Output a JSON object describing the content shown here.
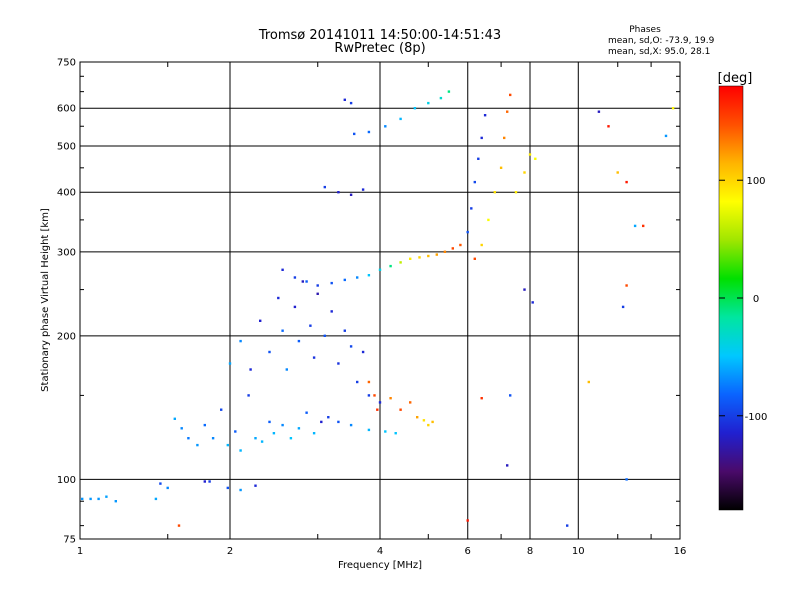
{
  "chart_data": {
    "type": "scatter",
    "title": "Tromsø 20141011 14:50:00-14:51:43",
    "subtitle": "RwPretec (8p)",
    "xlabel": "Frequency [MHz]",
    "ylabel": "Stationary phase Virtual Height [km]",
    "x_scale": "log",
    "y_scale": "log",
    "xlim": [
      1,
      16
    ],
    "ylim": [
      75,
      750
    ],
    "x_ticks": [
      1,
      2,
      4,
      6,
      8,
      10,
      16
    ],
    "y_ticks": [
      75,
      100,
      200,
      300,
      400,
      500,
      600,
      750
    ],
    "grid": true,
    "stats": {
      "heading": "Phases",
      "line1": "mean, sd,O:  -73.9, 19.9",
      "line2": "mean, sd,X:  95.0, 28.1"
    },
    "colorbar": {
      "label": "[deg]",
      "range": [
        -180,
        180
      ],
      "ticks": [
        100,
        0,
        -100
      ],
      "stops": [
        "#000000",
        "#4a0a6a",
        "#2020d0",
        "#0a64ff",
        "#00c8ff",
        "#00e6a0",
        "#00e000",
        "#a0e600",
        "#ffff00",
        "#ffb400",
        "#ff5000",
        "#ff0000"
      ]
    },
    "series": [
      {
        "points": [
          [
            1.01,
            91,
            -65
          ],
          [
            1.05,
            91,
            -65
          ],
          [
            1.09,
            91,
            -65
          ],
          [
            1.13,
            92,
            -62
          ],
          [
            1.18,
            90,
            -65
          ],
          [
            1.42,
            91,
            -60
          ],
          [
            1.45,
            98,
            -95
          ],
          [
            1.5,
            96,
            -70
          ],
          [
            1.58,
            80,
            150
          ],
          [
            1.78,
            99,
            -115
          ],
          [
            1.82,
            99,
            -100
          ],
          [
            1.98,
            96,
            -90
          ],
          [
            2.1,
            95,
            -65
          ],
          [
            2.25,
            97,
            -110
          ]
        ]
      },
      {
        "points": [
          [
            1.55,
            134,
            -60
          ],
          [
            1.6,
            128,
            -70
          ],
          [
            1.65,
            122,
            -75
          ],
          [
            1.72,
            118,
            -65
          ],
          [
            1.78,
            130,
            -80
          ],
          [
            1.85,
            122,
            -70
          ],
          [
            1.92,
            140,
            -95
          ],
          [
            1.98,
            118,
            -55
          ],
          [
            2.05,
            126,
            -85
          ],
          [
            2.1,
            115,
            -55
          ],
          [
            2.18,
            150,
            -100
          ],
          [
            2.25,
            122,
            -60
          ],
          [
            2.32,
            120,
            -55
          ],
          [
            2.4,
            132,
            -85
          ],
          [
            2.45,
            125,
            -55
          ],
          [
            2.55,
            130,
            -70
          ],
          [
            2.65,
            122,
            -50
          ],
          [
            2.75,
            128,
            -60
          ],
          [
            2.85,
            138,
            -85
          ],
          [
            2.95,
            125,
            -55
          ],
          [
            3.05,
            132,
            -115
          ],
          [
            3.15,
            135,
            -100
          ],
          [
            3.3,
            132,
            -90
          ],
          [
            3.5,
            130,
            -70
          ],
          [
            3.8,
            127,
            -55
          ],
          [
            4.1,
            126,
            -50
          ],
          [
            4.3,
            125,
            -50
          ]
        ]
      },
      {
        "points": [
          [
            2.0,
            175,
            -60
          ],
          [
            2.1,
            195,
            -70
          ],
          [
            2.2,
            170,
            -110
          ],
          [
            2.3,
            215,
            -115
          ],
          [
            2.4,
            185,
            -90
          ],
          [
            2.5,
            240,
            -110
          ],
          [
            2.55,
            205,
            -80
          ],
          [
            2.6,
            170,
            -70
          ],
          [
            2.7,
            230,
            -115
          ],
          [
            2.75,
            195,
            -85
          ],
          [
            2.8,
            260,
            -120
          ],
          [
            2.9,
            210,
            -100
          ],
          [
            2.95,
            180,
            -105
          ],
          [
            3.0,
            245,
            -125
          ],
          [
            3.1,
            200,
            -90
          ],
          [
            3.2,
            225,
            -110
          ],
          [
            3.3,
            175,
            -105
          ],
          [
            3.4,
            205,
            -100
          ],
          [
            3.5,
            190,
            -95
          ],
          [
            3.6,
            160,
            -100
          ],
          [
            3.7,
            185,
            -110
          ],
          [
            3.8,
            150,
            -100
          ],
          [
            4.0,
            145,
            -110
          ]
        ]
      },
      {
        "points": [
          [
            3.8,
            160,
            140
          ],
          [
            3.9,
            150,
            150
          ],
          [
            3.95,
            140,
            160
          ],
          [
            4.2,
            148,
            130
          ],
          [
            4.4,
            140,
            150
          ],
          [
            4.6,
            145,
            140
          ],
          [
            4.75,
            135,
            120
          ],
          [
            4.9,
            133,
            95
          ],
          [
            5.0,
            130,
            100
          ],
          [
            5.1,
            132,
            110
          ]
        ]
      },
      {
        "points": [
          [
            2.55,
            275,
            -110
          ],
          [
            2.7,
            265,
            -100
          ],
          [
            2.85,
            260,
            -85
          ],
          [
            3.0,
            255,
            -100
          ],
          [
            3.2,
            258,
            -90
          ],
          [
            3.4,
            262,
            -80
          ],
          [
            3.6,
            265,
            -70
          ],
          [
            3.8,
            268,
            -50
          ],
          [
            4.0,
            275,
            -40
          ],
          [
            4.2,
            280,
            -10
          ],
          [
            4.4,
            285,
            60
          ],
          [
            4.6,
            290,
            90
          ],
          [
            4.8,
            292,
            100
          ],
          [
            5.0,
            294,
            110
          ],
          [
            5.2,
            296,
            120
          ],
          [
            5.4,
            300,
            130
          ],
          [
            5.6,
            305,
            150
          ],
          [
            5.8,
            310,
            145
          ],
          [
            6.0,
            330,
            -90
          ],
          [
            6.1,
            370,
            -100
          ],
          [
            6.2,
            420,
            -95
          ],
          [
            6.3,
            470,
            -100
          ],
          [
            6.4,
            520,
            -110
          ],
          [
            6.5,
            580,
            -110
          ]
        ]
      },
      {
        "points": [
          [
            6.2,
            290,
            150
          ],
          [
            6.4,
            310,
            100
          ],
          [
            6.6,
            350,
            80
          ],
          [
            6.8,
            400,
            95
          ],
          [
            7.0,
            450,
            110
          ],
          [
            7.1,
            520,
            130
          ],
          [
            7.2,
            590,
            140
          ],
          [
            7.3,
            640,
            150
          ],
          [
            7.5,
            400,
            90
          ],
          [
            7.8,
            440,
            100
          ],
          [
            8.0,
            480,
            90
          ],
          [
            8.2,
            470,
            80
          ]
        ]
      },
      {
        "points": [
          [
            3.1,
            410,
            -100
          ],
          [
            3.3,
            400,
            -115
          ],
          [
            3.5,
            395,
            -120
          ],
          [
            3.7,
            405,
            -110
          ],
          [
            3.55,
            530,
            -90
          ],
          [
            3.8,
            535,
            -80
          ],
          [
            4.1,
            550,
            -70
          ],
          [
            4.4,
            570,
            -55
          ],
          [
            4.7,
            600,
            -50
          ],
          [
            5.0,
            615,
            -40
          ],
          [
            5.3,
            630,
            -30
          ],
          [
            5.5,
            650,
            -10
          ],
          [
            3.4,
            625,
            -110
          ],
          [
            3.5,
            615,
            -100
          ]
        ]
      },
      {
        "points": [
          [
            10.5,
            160,
            110
          ],
          [
            11,
            590,
            -120
          ],
          [
            11.5,
            550,
            170
          ],
          [
            12,
            440,
            110
          ],
          [
            12.5,
            420,
            170
          ],
          [
            12.5,
            100,
            -80
          ],
          [
            13,
            340,
            -60
          ],
          [
            13.5,
            340,
            160
          ],
          [
            15.5,
            600,
            85
          ],
          [
            15,
            525,
            -65
          ],
          [
            12.3,
            230,
            -100
          ],
          [
            12.5,
            255,
            150
          ],
          [
            7.2,
            107,
            -120
          ],
          [
            9.5,
            80,
            -100
          ],
          [
            6.0,
            82,
            170
          ],
          [
            7.8,
            250,
            -120
          ],
          [
            8.1,
            235,
            -110
          ],
          [
            6.4,
            148,
            160
          ],
          [
            7.3,
            150,
            -90
          ]
        ]
      }
    ]
  }
}
